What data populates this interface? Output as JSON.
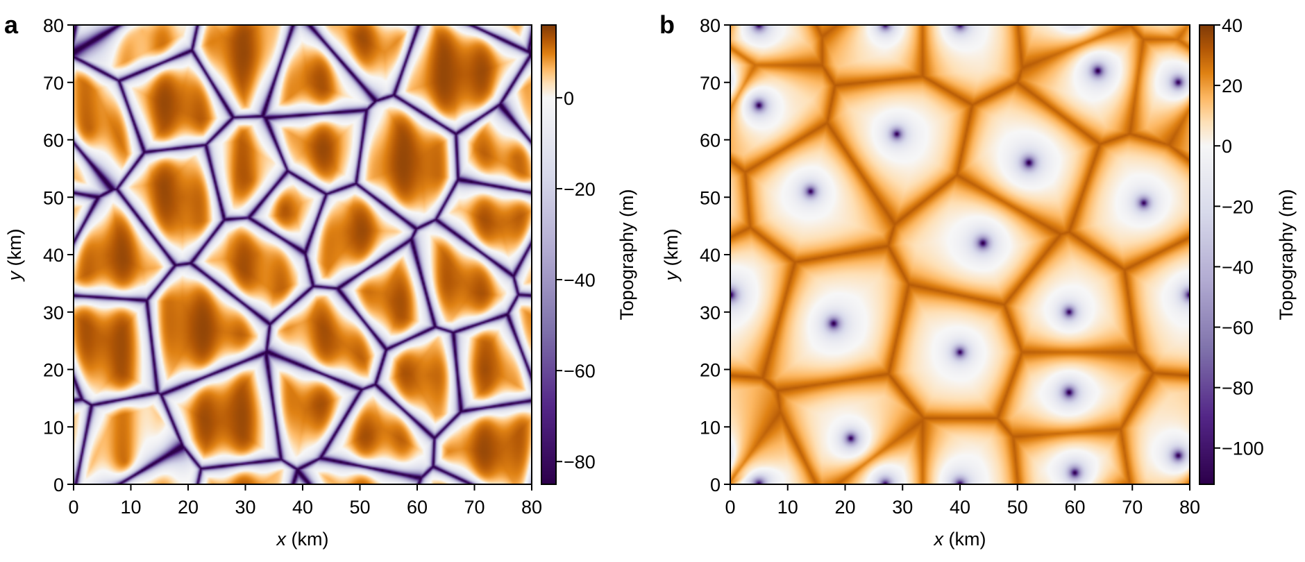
{
  "chart_data": [
    {
      "type": "heatmap",
      "panel_label": "a",
      "xlabel_var": "x",
      "xlabel_unit": " (km)",
      "ylabel_var": "y",
      "ylabel_unit": " (km)",
      "xlim": [
        0,
        80
      ],
      "ylim": [
        0,
        80
      ],
      "xticks": [
        "0",
        "10",
        "20",
        "30",
        "40",
        "50",
        "60",
        "70",
        "80"
      ],
      "yticks": [
        "0",
        "10",
        "20",
        "30",
        "40",
        "50",
        "60",
        "70",
        "80"
      ],
      "colorbar": {
        "label": "Topography (m)",
        "range": [
          -85,
          16
        ],
        "ticks": [
          "0",
          "−20",
          "−40",
          "−60",
          "−80"
        ],
        "tick_values": [
          0,
          -20,
          -40,
          -60,
          -80
        ]
      },
      "colormap": {
        "negative": [
          "#f7f7f7",
          "#d8daeb",
          "#b2abd2",
          "#8073ac",
          "#542788",
          "#2d004b"
        ],
        "positive": [
          "#f7f7f7",
          "#fee0b6",
          "#fdb863",
          "#e08214",
          "#b35806",
          "#7f3b08"
        ]
      },
      "description_of_field": "orange cellular plateaus separated by narrow purple troughs"
    },
    {
      "type": "heatmap",
      "panel_label": "b",
      "xlabel_var": "x",
      "xlabel_unit": " (km)",
      "ylabel_var": "y",
      "ylabel_unit": " (km)",
      "xlim": [
        0,
        80
      ],
      "ylim": [
        0,
        80
      ],
      "xticks": [
        "0",
        "10",
        "20",
        "30",
        "40",
        "50",
        "60",
        "70",
        "80"
      ],
      "yticks": [
        "0",
        "10",
        "20",
        "30",
        "40",
        "50",
        "60",
        "70",
        "80"
      ],
      "colorbar": {
        "label": "Topography (m)",
        "range": [
          -112,
          40
        ],
        "ticks": [
          "40",
          "20",
          "0",
          "−20",
          "−40",
          "−60",
          "−80",
          "−100"
        ],
        "tick_values": [
          40,
          20,
          0,
          -20,
          -40,
          -60,
          -80,
          -100
        ]
      },
      "colormap": {
        "negative": [
          "#f7f7f7",
          "#d8daeb",
          "#b2abd2",
          "#8073ac",
          "#542788",
          "#2d004b"
        ],
        "positive": [
          "#f7f7f7",
          "#fee0b6",
          "#fdb863",
          "#e08214",
          "#b35806",
          "#7f3b08"
        ]
      },
      "description_of_field": "purple star-shaped pits surrounded by orange polygonal ridges"
    }
  ]
}
